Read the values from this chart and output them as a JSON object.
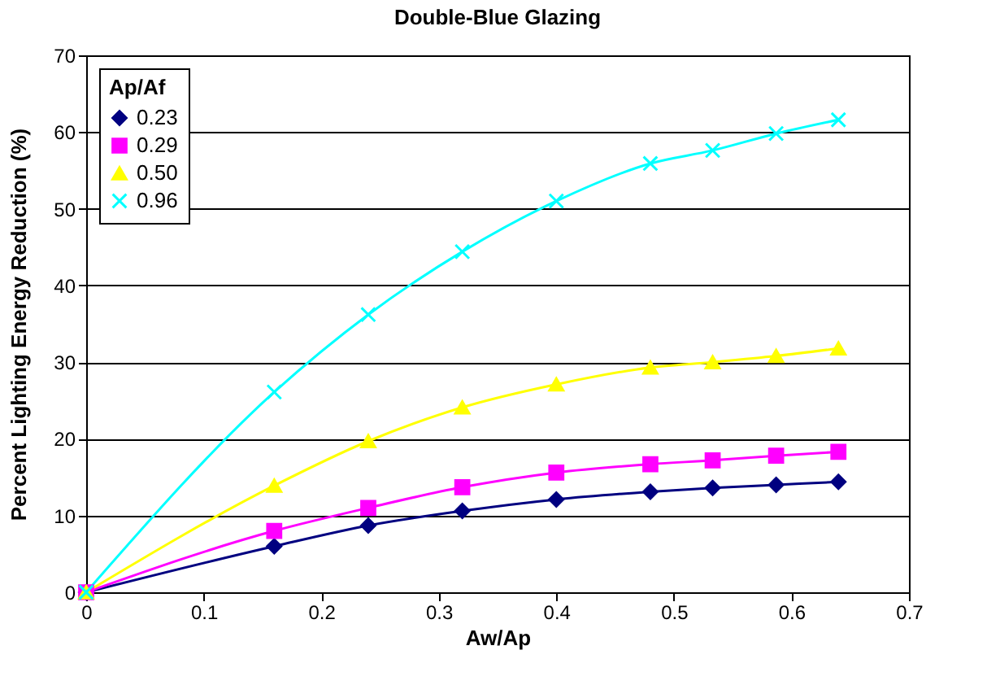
{
  "chart_data": {
    "type": "line",
    "title": "Double-Blue Glazing",
    "xlabel": "Aw/Ap",
    "ylabel": "Percent Lighting Energy Reduction (%)",
    "legend_title": "Ap/Af",
    "x": [
      0,
      0.16,
      0.24,
      0.32,
      0.4,
      0.48,
      0.533,
      0.587,
      0.64
    ],
    "series": [
      {
        "name": "0.23",
        "color": "#000080",
        "marker": "diamond",
        "values": [
          0,
          6.0,
          8.7,
          10.6,
          12.1,
          13.1,
          13.6,
          14.0,
          14.4
        ]
      },
      {
        "name": "0.29",
        "color": "#ff00ff",
        "marker": "square",
        "values": [
          0,
          8.0,
          11.0,
          13.7,
          15.6,
          16.7,
          17.2,
          17.8,
          18.3
        ]
      },
      {
        "name": "0.50",
        "color": "#ffff00",
        "marker": "triangle",
        "values": [
          0,
          13.9,
          19.7,
          24.1,
          27.1,
          29.3,
          30.0,
          30.8,
          31.8
        ]
      },
      {
        "name": "0.96",
        "color": "#00ffff",
        "marker": "cross",
        "values": [
          0,
          26.1,
          36.2,
          44.4,
          51.0,
          55.9,
          57.6,
          59.8,
          61.6
        ]
      }
    ],
    "xlim": [
      0,
      0.7
    ],
    "xticks": [
      0,
      0.1,
      0.2,
      0.3,
      0.4,
      0.5,
      0.6,
      0.7
    ],
    "ylim": [
      0,
      70
    ],
    "yticks": [
      0,
      10,
      20,
      30,
      40,
      50,
      60,
      70
    ],
    "grid": "y",
    "legend": "top left",
    "line_style": "solid"
  }
}
